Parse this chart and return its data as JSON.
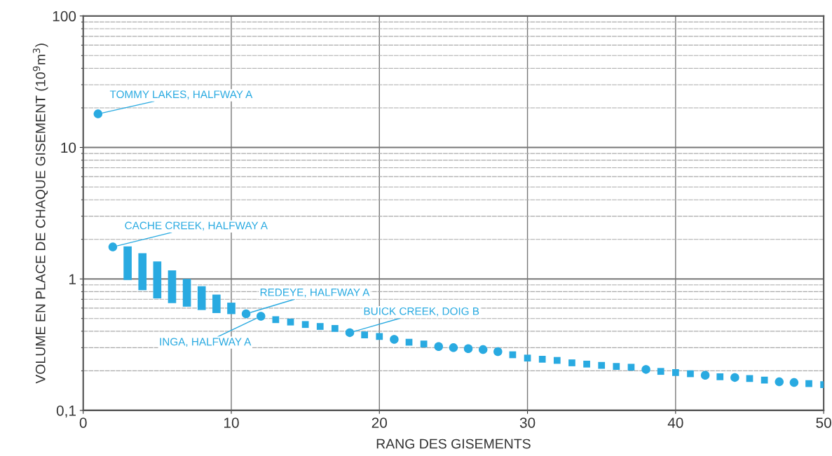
{
  "chart_data": {
    "type": "scatter",
    "xlabel": "RANG DES GISEMENTS",
    "ylabel": "VOLUME EN PLACE DE CHAQUE GISEMENT (10$^{9}$m$^{3}$)",
    "log": "y",
    "xlim": [
      0,
      50
    ],
    "xticks": [
      0,
      10,
      20,
      30,
      40,
      50
    ],
    "ylim": [
      0.1,
      100
    ],
    "yticks": [
      {
        "value": 0.1,
        "label": "0,1"
      },
      1,
      10,
      100
    ],
    "grid": true,
    "legend": false,
    "series": [
      {
        "type": "bar",
        "color": "#29aae1",
        "x": [
          3,
          4,
          5,
          6,
          7,
          8,
          9,
          10
        ],
        "base": [
          0.98,
          0.82,
          0.71,
          0.655,
          0.615,
          0.58,
          0.55,
          0.54
        ],
        "values": [
          0.79,
          0.75,
          0.65,
          0.505,
          0.385,
          0.3,
          0.21,
          0.12
        ]
      },
      {
        "marker": "circle",
        "color": "#29aae1",
        "x": [
          1,
          2,
          11,
          12,
          18,
          21,
          24,
          25,
          26,
          27,
          28,
          38,
          42,
          44,
          47,
          48
        ],
        "values": [
          18,
          1.75,
          0.543,
          0.52,
          0.39,
          0.347,
          0.306,
          0.3,
          0.295,
          0.29,
          0.28,
          0.205,
          0.185,
          0.178,
          0.165,
          0.163
        ]
      },
      {
        "marker": "square",
        "color": "#29aae1",
        "x": [
          13,
          14,
          15,
          16,
          17,
          19,
          20,
          22,
          23,
          29,
          30,
          31,
          32,
          33,
          34,
          35,
          36,
          37,
          39,
          40,
          41,
          43,
          45,
          46,
          49,
          50
        ],
        "values": [
          0.49,
          0.47,
          0.45,
          0.435,
          0.42,
          0.375,
          0.365,
          0.33,
          0.32,
          0.265,
          0.25,
          0.245,
          0.24,
          0.23,
          0.225,
          0.22,
          0.216,
          0.213,
          0.198,
          0.194,
          0.19,
          0.18,
          0.175,
          0.17,
          0.16,
          0.157
        ]
      }
    ],
    "annotations": [
      {
        "text": "TOMMY LAKES, HALFWAY A",
        "x": 1,
        "y": 18
      },
      {
        "text": "CACHE CREEK, HALFWAY A",
        "x": 2,
        "y": 1.75
      },
      {
        "text": "REDEYE, HALFWAY A",
        "x": 11,
        "y": 0.543
      },
      {
        "text": "INGA, HALFWAY A",
        "x": 12,
        "y": 0.52
      },
      {
        "text": "BUICK CREEK, DOIG B",
        "x": 18,
        "y": 0.39
      }
    ]
  }
}
